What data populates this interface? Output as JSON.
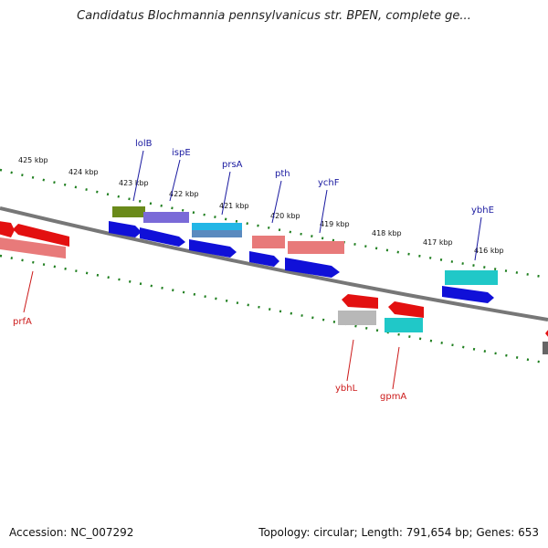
{
  "title": "Candidatus Blochmannia pennsylvanicus str. BPEN, complete ge...",
  "footer": {
    "accession": "Accession: NC_007292",
    "summary": "Topology: circular; Length: 791,654 bp; Genes: 653"
  },
  "ticks": [
    "425 kbp",
    "424 kbp",
    "423 kbp",
    "422 kbp",
    "421 kbp",
    "420 kbp",
    "419 kbp",
    "418 kbp",
    "417 kbp",
    "416 kbp"
  ],
  "gene_labels": {
    "forward": [
      "lolB",
      "ispE",
      "prsA",
      "pth",
      "ychF",
      "ybhE"
    ],
    "reverse": [
      "prfA",
      "ybhL",
      "gpmA"
    ]
  },
  "colors": {
    "backbone": "#777777",
    "ticks": "#1f7f1f",
    "forward_label": "#1a1aa0",
    "reverse_label": "#cc1a1a"
  }
}
